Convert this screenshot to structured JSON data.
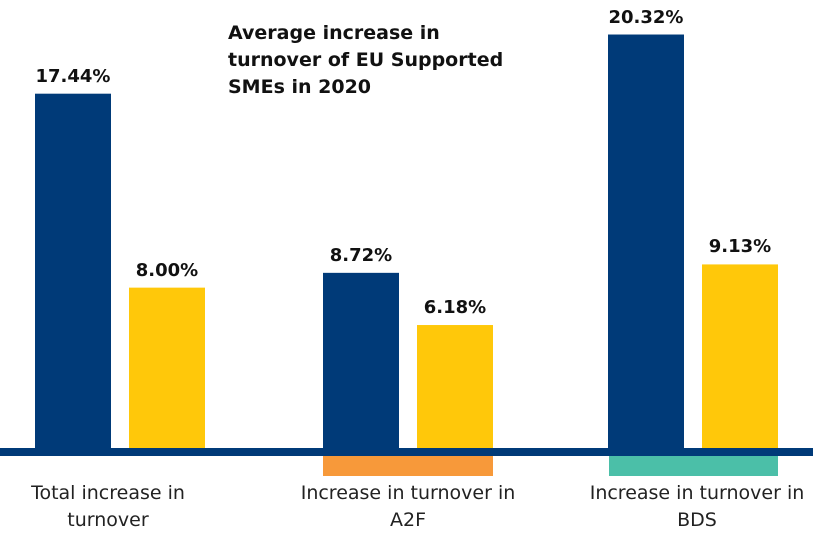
{
  "chart_data": {
    "type": "bar",
    "title": "Average increase in turnover of EU Supported SMEs in 2020",
    "categories": [
      "Total increase in turnover",
      "Increase in turnover in A2F",
      "Increase in turnover in BDS"
    ],
    "series": [
      {
        "color": "#003a78",
        "values": [
          17.44,
          8.72,
          20.32
        ],
        "value_labels": [
          "17.44%",
          "8.72%",
          "20.32%"
        ]
      },
      {
        "color": "#ffc80a",
        "values": [
          8.0,
          6.18,
          9.13
        ],
        "value_labels": [
          "8.00%",
          "6.18%",
          "9.13%"
        ]
      }
    ],
    "ylim": [
      0,
      22
    ]
  }
}
